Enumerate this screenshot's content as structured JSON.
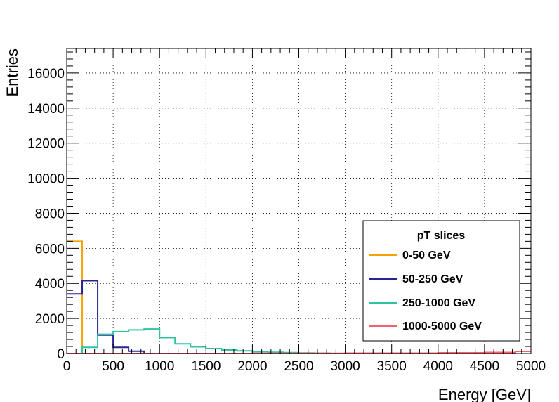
{
  "chart_data": {
    "type": "histogram",
    "xlabel": "Energy [GeV]",
    "ylabel": "Entries",
    "xlim": [
      0,
      5000
    ],
    "ylim": [
      0,
      17400
    ],
    "xticks": [
      0,
      500,
      1000,
      1500,
      2000,
      2500,
      3000,
      3500,
      4000,
      4500,
      5000
    ],
    "yticks": [
      0,
      2000,
      4000,
      6000,
      8000,
      10000,
      12000,
      14000,
      16000
    ],
    "grid": true,
    "bin_width": 166.67,
    "legend": {
      "title": "pT slices",
      "placement": "bottom-right"
    },
    "series": [
      {
        "name": "0-50 GeV",
        "color": "#f5a300",
        "x_edges": [
          0,
          166.67,
          333.33
        ],
        "values": [
          6400,
          0
        ]
      },
      {
        "name": "50-250 GeV",
        "color": "#2a2394",
        "x_edges": [
          0,
          166.67,
          333.33,
          500,
          666.67,
          833.33,
          1000
        ],
        "values": [
          3400,
          4150,
          1050,
          350,
          130,
          0
        ]
      },
      {
        "name": "250-1000 GeV",
        "color": "#2ec4a0",
        "x_edges": [
          0,
          166.67,
          333.33,
          500,
          666.67,
          833.33,
          1000,
          1166.67,
          1333.33,
          1500,
          1666.67,
          1833.33,
          2000,
          2166.67,
          2333.33,
          2500,
          2666.67,
          2833.33,
          3000
        ],
        "values": [
          0,
          350,
          1100,
          1250,
          1350,
          1400,
          900,
          550,
          380,
          280,
          200,
          150,
          100,
          70,
          50,
          30,
          20,
          0
        ]
      },
      {
        "name": "1000-5000 GeV",
        "color": "#f5606b",
        "x_edges": [
          0,
          2000,
          3000,
          4000,
          4500,
          4833.33,
          5000
        ],
        "values": [
          0,
          10,
          20,
          40,
          60,
          120
        ]
      }
    ]
  }
}
